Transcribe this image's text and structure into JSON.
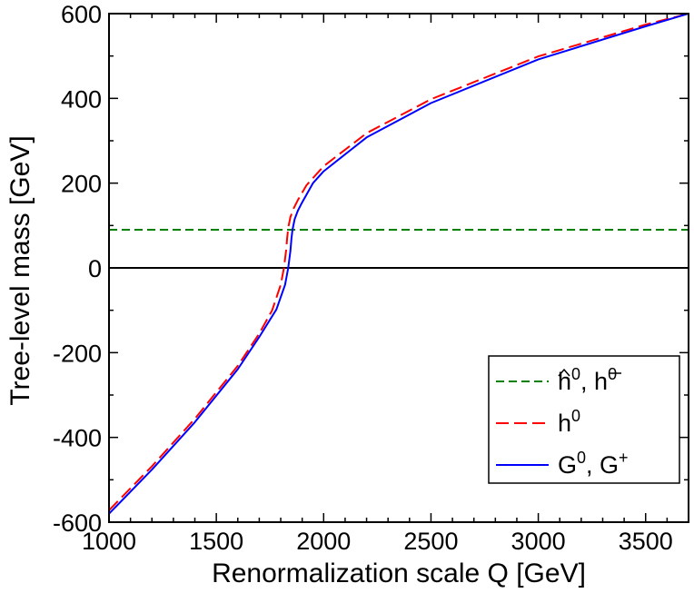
{
  "chart_data": {
    "type": "line",
    "title": "",
    "xlabel": "Renormalization scale Q [GeV]",
    "ylabel": "Tree-level mass  [GeV]",
    "xlim": [
      1000,
      3700
    ],
    "ylim": [
      -600,
      600
    ],
    "xticks": [
      1000,
      1500,
      2000,
      2500,
      3000,
      3500
    ],
    "yticks": [
      -600,
      -400,
      -200,
      0,
      200,
      400,
      600
    ],
    "xtick_labels": [
      "1000",
      "1500",
      "2000",
      "2500",
      "3000",
      "3500"
    ],
    "ytick_labels": [
      "-600",
      "-400",
      "-200",
      "0",
      "200",
      "400",
      "600"
    ],
    "grid": false,
    "legend_position": "bottom-right",
    "reference_lines": [
      {
        "y": 0,
        "color": "#000000"
      }
    ],
    "series": [
      {
        "name": "ĥ0, h̄0",
        "name_main": "h",
        "name_super": "0",
        "name_main2": "h",
        "name_super2": "0",
        "color": "#008000",
        "style": "dashed",
        "x": [
          1000,
          3700
        ],
        "y": [
          90,
          90
        ]
      },
      {
        "name": "h0",
        "name_main": "h",
        "name_super": "0",
        "color": "#ff0000",
        "style": "dashed",
        "x": [
          1000,
          1200,
          1400,
          1600,
          1700,
          1760,
          1800,
          1815,
          1825,
          1830,
          1835,
          1845,
          1860,
          1880,
          1920,
          2000,
          2200,
          2500,
          3000,
          3500,
          3700
        ],
        "y": [
          -572,
          -468,
          -356,
          -231,
          -155,
          -100,
          -40,
          0,
          40,
          70,
          95,
          120,
          140,
          160,
          195,
          240,
          318,
          398,
          499,
          574,
          600
        ]
      },
      {
        "name": "G0, G+",
        "name_main": "G",
        "name_super": "0",
        "name_main2": "G",
        "name_super2": "+",
        "color": "#0000ff",
        "style": "solid",
        "x": [
          1000,
          1200,
          1400,
          1600,
          1700,
          1780,
          1820,
          1835,
          1845,
          1850,
          1855,
          1865,
          1880,
          1900,
          1950,
          2000,
          2200,
          2500,
          3000,
          3500,
          3700
        ],
        "y": [
          -580,
          -476,
          -364,
          -239,
          -163,
          -98,
          -40,
          0,
          40,
          70,
          90,
          115,
          135,
          155,
          200,
          228,
          308,
          389,
          492,
          570,
          600
        ]
      }
    ]
  }
}
